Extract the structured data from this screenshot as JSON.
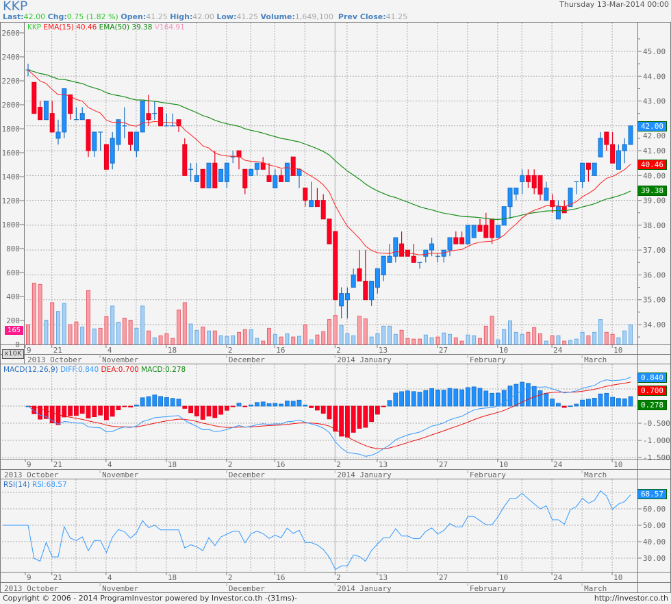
{
  "header": {
    "symbol": "KKP",
    "date": "Thursday 13-Mar-2014 00:00",
    "last_label": "Last:",
    "last": "42.00",
    "chg_label": "Chg:",
    "chg": "0.75 (1.82 %)",
    "open_label": "Open:",
    "open": "41.25",
    "high_label": "High:",
    "high": "42.00",
    "low_label": "Low:",
    "low": "41.25",
    "volume_label": "Volume:",
    "volume": "1,649,100",
    "prev_close_label": "Prev Close:",
    "prev_close": "41.25"
  },
  "main_legend": {
    "symbol": "KKP",
    "ema15_label": "EMA(15)",
    "ema15": "40.46",
    "ema50_label": "EMA(50)",
    "ema50": "39.38",
    "vol_label": "V",
    "vol": "164.91",
    "vol_box": "165",
    "price_box": "42.00"
  },
  "colors": {
    "up": "#1e90ff",
    "down": "#ff0022",
    "ema15": "#ff2020",
    "ema50": "#1a8c1a",
    "diff": "#3399ff",
    "dea": "#ee1111",
    "rsi": "#3399ff"
  },
  "chart_data": {
    "type": "candlestick",
    "title": "KKP",
    "candles_columns": [
      "open",
      "high",
      "low",
      "close"
    ],
    "candles": [
      [
        44.25,
        44.5,
        44.0,
        44.25
      ],
      [
        43.75,
        43.75,
        42.5,
        42.5
      ],
      [
        42.75,
        43.0,
        42.25,
        42.25
      ],
      [
        42.25,
        43.0,
        42.25,
        43.0
      ],
      [
        42.5,
        43.0,
        41.75,
        41.75
      ],
      [
        41.5,
        42.25,
        41.25,
        41.75
      ],
      [
        41.75,
        43.5,
        41.5,
        43.5
      ],
      [
        43.25,
        43.25,
        42.25,
        42.5
      ],
      [
        42.25,
        42.75,
        42.25,
        42.25
      ],
      [
        42.25,
        42.75,
        42.25,
        42.5
      ],
      [
        42.25,
        42.25,
        40.75,
        41.0
      ],
      [
        41.0,
        41.75,
        40.75,
        41.75
      ],
      [
        41.75,
        41.75,
        41.0,
        41.75
      ],
      [
        41.25,
        41.25,
        40.25,
        40.25
      ],
      [
        40.5,
        41.75,
        40.25,
        41.5
      ],
      [
        41.25,
        42.25,
        41.0,
        42.25
      ],
      [
        42.0,
        42.75,
        41.5,
        42.0
      ],
      [
        41.75,
        41.75,
        41.0,
        41.25
      ],
      [
        41.0,
        41.75,
        40.75,
        41.75
      ],
      [
        41.75,
        43.0,
        41.75,
        43.0
      ],
      [
        42.5,
        43.25,
        42.0,
        42.25
      ],
      [
        42.5,
        43.0,
        42.25,
        42.5
      ],
      [
        42.75,
        42.75,
        42.0,
        42.0
      ],
      [
        42.0,
        42.5,
        42.0,
        42.0
      ],
      [
        42.0,
        42.5,
        42.0,
        42.0
      ],
      [
        42.25,
        42.25,
        41.75,
        42.0
      ],
      [
        41.25,
        41.5,
        40.0,
        40.0
      ],
      [
        40.25,
        40.5,
        39.75,
        40.25
      ],
      [
        39.75,
        40.5,
        39.75,
        40.0
      ],
      [
        40.25,
        40.25,
        39.5,
        39.5
      ],
      [
        39.5,
        40.5,
        39.5,
        40.5
      ],
      [
        40.5,
        41.0,
        39.5,
        39.5
      ],
      [
        39.75,
        40.25,
        39.75,
        40.25
      ],
      [
        39.75,
        40.5,
        39.5,
        40.5
      ],
      [
        40.75,
        41.0,
        40.5,
        40.75
      ],
      [
        41.0,
        41.0,
        40.25,
        40.75
      ],
      [
        40.25,
        40.25,
        39.25,
        39.5
      ],
      [
        40.0,
        40.25,
        40.0,
        40.25
      ],
      [
        40.25,
        40.5,
        40.0,
        40.5
      ],
      [
        40.5,
        40.75,
        40.25,
        40.25
      ],
      [
        40.0,
        40.5,
        39.75,
        39.75
      ],
      [
        39.5,
        40.25,
        39.5,
        40.0
      ],
      [
        40.0,
        40.25,
        39.75,
        39.75
      ],
      [
        39.75,
        40.5,
        39.75,
        40.5
      ],
      [
        40.75,
        40.75,
        40.0,
        40.0
      ],
      [
        40.0,
        40.25,
        39.5,
        40.25
      ],
      [
        39.5,
        39.5,
        38.75,
        39.0
      ],
      [
        38.75,
        39.75,
        38.75,
        39.0
      ],
      [
        39.0,
        39.5,
        38.75,
        38.75
      ],
      [
        39.0,
        39.25,
        38.25,
        38.25
      ],
      [
        38.25,
        38.25,
        37.25,
        37.25
      ],
      [
        37.75,
        37.75,
        35.0,
        35.0
      ],
      [
        34.75,
        35.5,
        34.25,
        35.25
      ],
      [
        35.0,
        35.5,
        34.25,
        35.25
      ],
      [
        35.5,
        36.25,
        35.5,
        36.0
      ],
      [
        36.25,
        37.0,
        35.75,
        35.75
      ],
      [
        35.75,
        37.0,
        35.0,
        35.0
      ],
      [
        35.0,
        35.75,
        34.75,
        35.75
      ],
      [
        35.5,
        36.25,
        35.25,
        36.25
      ],
      [
        36.0,
        36.75,
        35.75,
        36.75
      ],
      [
        36.5,
        37.25,
        36.5,
        36.75
      ],
      [
        36.75,
        37.5,
        36.5,
        37.5
      ],
      [
        37.25,
        37.75,
        36.75,
        36.75
      ],
      [
        37.0,
        37.0,
        36.75,
        36.75
      ],
      [
        36.75,
        37.25,
        36.5,
        36.5
      ],
      [
        36.5,
        36.5,
        36.25,
        36.5
      ],
      [
        36.75,
        37.0,
        36.5,
        37.0
      ],
      [
        37.0,
        37.5,
        36.75,
        37.25
      ],
      [
        36.75,
        36.85,
        36.5,
        36.75
      ],
      [
        36.75,
        37.0,
        36.5,
        37.0
      ],
      [
        37.0,
        37.5,
        36.75,
        37.5
      ],
      [
        37.5,
        37.75,
        37.25,
        37.25
      ],
      [
        37.5,
        37.75,
        37.25,
        37.25
      ],
      [
        37.25,
        38.0,
        37.25,
        38.0
      ],
      [
        37.5,
        38.0,
        37.5,
        38.0
      ],
      [
        38.0,
        38.25,
        37.75,
        37.75
      ],
      [
        38.0,
        38.5,
        37.5,
        37.5
      ],
      [
        38.25,
        38.25,
        37.25,
        37.5
      ],
      [
        37.5,
        38.0,
        37.5,
        38.0
      ],
      [
        38.0,
        38.75,
        38.0,
        38.75
      ],
      [
        38.75,
        39.5,
        38.25,
        39.5
      ],
      [
        39.25,
        39.5,
        39.0,
        39.5
      ],
      [
        39.75,
        40.25,
        39.25,
        40.0
      ],
      [
        40.0,
        40.25,
        39.5,
        39.75
      ],
      [
        40.0,
        40.25,
        39.25,
        39.5
      ],
      [
        40.0,
        40.0,
        39.0,
        39.25
      ],
      [
        39.0,
        39.75,
        39.0,
        39.5
      ],
      [
        39.0,
        39.25,
        38.5,
        38.75
      ],
      [
        38.25,
        39.0,
        38.25,
        38.75
      ],
      [
        38.75,
        39.0,
        38.5,
        38.5
      ],
      [
        38.75,
        39.5,
        38.75,
        39.5
      ],
      [
        39.75,
        39.75,
        39.25,
        39.75
      ],
      [
        39.75,
        40.5,
        39.5,
        40.5
      ],
      [
        40.5,
        40.5,
        39.75,
        40.25
      ],
      [
        40.0,
        40.5,
        40.0,
        40.5
      ],
      [
        40.75,
        41.75,
        40.75,
        41.5
      ],
      [
        41.75,
        41.75,
        41.0,
        41.25
      ],
      [
        41.25,
        41.75,
        40.5,
        40.5
      ],
      [
        40.25,
        41.25,
        40.25,
        41.0
      ],
      [
        41.0,
        41.5,
        40.5,
        41.25
      ],
      [
        41.25,
        42.0,
        41.25,
        42.0
      ]
    ],
    "volume_unit": "x10K",
    "volume": [
      165,
      512,
      501,
      203,
      349,
      276,
      343,
      165,
      188,
      146,
      450,
      130,
      135,
      233,
      321,
      186,
      220,
      203,
      135,
      321,
      113,
      56,
      73,
      90,
      51,
      287,
      349,
      171,
      118,
      146,
      113,
      113,
      73,
      68,
      73,
      101,
      124,
      124,
      51,
      28,
      135,
      84,
      62,
      90,
      62,
      68,
      165,
      39,
      79,
      107,
      208,
      242,
      158,
      90,
      73,
      236,
      214,
      62,
      90,
      152,
      152,
      84,
      118,
      51,
      45,
      45,
      79,
      56,
      62,
      96,
      84,
      56,
      28,
      79,
      73,
      51,
      152,
      236,
      39,
      124,
      197,
      101,
      84,
      101,
      141,
      90,
      28,
      73,
      73,
      28,
      34,
      45,
      101,
      73,
      101,
      208,
      101,
      84,
      56,
      113,
      165
    ],
    "price_axis": {
      "ticks": [
        "34.00",
        "35.00",
        "36.00",
        "37.00",
        "38.00",
        "39.00",
        "40.00",
        "41.00",
        "42.00",
        "43.00",
        "44.00",
        "45.00"
      ],
      "range": [
        33.2,
        46.2
      ]
    },
    "volume_axis": {
      "ticks": [
        "0",
        "200",
        "400",
        "600",
        "800",
        "1000",
        "1200",
        "1400",
        "1600",
        "1800",
        "2000",
        "2200",
        "2400",
        "2600"
      ],
      "range": [
        0,
        2680
      ]
    },
    "day_ticks": [
      {
        "label": "9",
        "index": 0
      },
      {
        "label": "21",
        "index": 4
      },
      {
        "label": "4",
        "index": 13
      },
      {
        "label": "18",
        "index": 23
      },
      {
        "label": "2",
        "index": 33
      },
      {
        "label": "16",
        "index": 41
      },
      {
        "label": "2",
        "index": 51
      },
      {
        "label": "13",
        "index": 58
      },
      {
        "label": "27",
        "index": 68
      },
      {
        "label": "10",
        "index": 78
      },
      {
        "label": "24",
        "index": 87
      },
      {
        "label": "10",
        "index": 97
      }
    ],
    "month_ticks": [
      {
        "label": "2013 October",
        "index": 0
      },
      {
        "label": "November",
        "index": 12
      },
      {
        "label": "December",
        "index": 33
      },
      {
        "label": "2014 January",
        "index": 51
      },
      {
        "label": "February",
        "index": 73
      },
      {
        "label": "March",
        "index": 92
      }
    ],
    "ema": [
      {
        "period": 15,
        "label": "EMA(15)",
        "last": "40.46"
      },
      {
        "period": 50,
        "label": "EMA(50)",
        "last": "39.38"
      }
    ],
    "macd": {
      "label": "MACD(12,26,9)",
      "fast": 12,
      "slow": 26,
      "signal": 9,
      "diff_label": "DIFF:",
      "diff": "0.840",
      "dea_label": "DEA:",
      "dea": "0.700",
      "macd_label": "MACD:",
      "macd": "0.278",
      "axis_ticks": [
        "-0.500",
        "-1.000",
        "-1.500"
      ]
    },
    "rsi": {
      "label": "RSI(14)",
      "period": 14,
      "value_label": "RSI:",
      "value": "68.57",
      "axis_ticks": [
        "60.00",
        "50.00",
        "40.00",
        "30.00"
      ]
    }
  },
  "footer": {
    "copyright": "Copyright © 2006 - 2014 ProgramInvestor powered by Investor.co.th -(31ms)-",
    "url": "http://investor.co.th"
  }
}
